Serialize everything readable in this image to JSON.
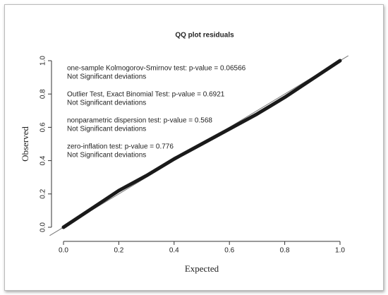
{
  "chart_data": {
    "type": "line",
    "title": "QQ plot residuals",
    "x_label": "Expected",
    "y_label": "Observed",
    "annotations": [
      [
        "one-sample Kolmogorov-Smirnov test: p-value = 0.06566",
        "Not Significant deviations"
      ],
      [
        "Outlier Test, Exact Binomial Test: p-value = 0.6921",
        "Not Significant deviations"
      ],
      [
        "nonparametric dispersion test: p-value = 0.568",
        "Not Significant deviations"
      ],
      [
        "zero-inflation test: p-value = 0.776",
        "Not Significant deviations"
      ]
    ],
    "x": [
      0.0,
      0.1,
      0.2,
      0.3,
      0.4,
      0.5,
      0.6,
      0.7,
      0.8,
      0.9,
      1.0
    ],
    "series": [
      {
        "color": "#1a1a1a",
        "values": [
          0.0,
          0.11,
          0.22,
          0.31,
          0.41,
          0.5,
          0.59,
          0.68,
          0.78,
          0.89,
          1.0
        ]
      }
    ],
    "diagonal": true,
    "xlim": [
      0,
      1
    ],
    "ylim": [
      0,
      1
    ],
    "xticks": [
      {
        "value": 0,
        "label": "0.0"
      },
      {
        "value": 0.2,
        "label": "0.2"
      },
      {
        "value": 0.4,
        "label": "0.4"
      },
      {
        "value": 0.6,
        "label": "0.6"
      },
      {
        "value": 0.8,
        "label": "0.8"
      },
      {
        "value": 1,
        "label": "1.0"
      }
    ],
    "yticks": [
      {
        "value": 0,
        "label": "0.0"
      },
      {
        "value": 0.2,
        "label": "0.2"
      },
      {
        "value": 0.4,
        "label": "0.4"
      },
      {
        "value": 0.6,
        "label": "0.6"
      },
      {
        "value": 0.8,
        "label": "0.8"
      },
      {
        "value": 1,
        "label": "1.0"
      }
    ]
  }
}
